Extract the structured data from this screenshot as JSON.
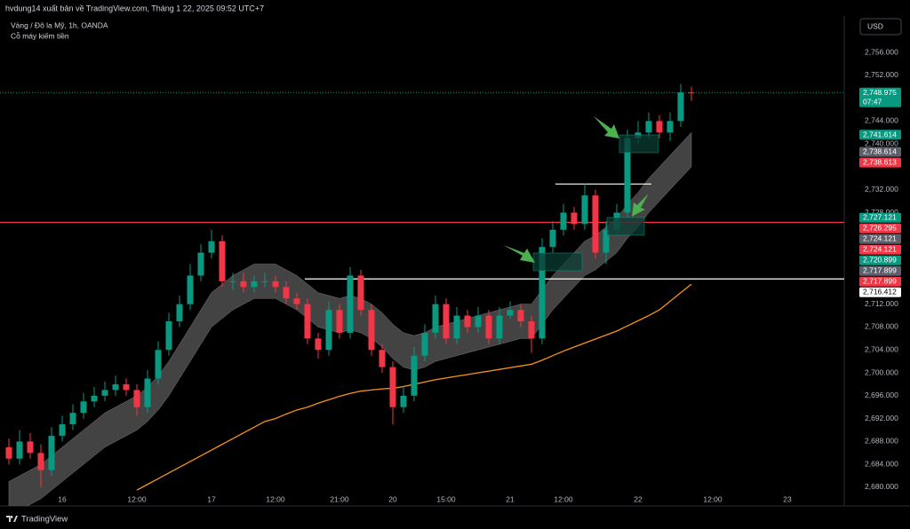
{
  "header": {
    "publisher": "hvdung14 xuất bản về TradingView.com, Tháng 1 22, 2025 09:52 UTC+7",
    "symbol": "Vàng / Đô la Mỹ, 1h, OANDA",
    "indicator": "Cỗ máy kiếm tiền",
    "currency": "USD",
    "brand": "TradingView"
  },
  "chart_data": {
    "type": "candlestick",
    "categories": [
      null,
      null,
      null,
      null,
      null,
      "16",
      null,
      null,
      null,
      null,
      null,
      null,
      "12:00",
      null,
      null,
      null,
      null,
      null,
      null,
      "17",
      null,
      null,
      null,
      null,
      null,
      "12:00",
      null,
      null,
      null,
      null,
      null,
      "21:00",
      null,
      null,
      null,
      null,
      "20",
      null,
      null,
      null,
      null,
      "15:00",
      null,
      null,
      null,
      null,
      null,
      "21",
      null,
      null,
      null,
      null,
      "12:00",
      null,
      null,
      null,
      null,
      null,
      null,
      "22",
      null,
      null,
      null,
      null,
      null,
      null,
      "12:00",
      null,
      null,
      null,
      null,
      null,
      null,
      "23",
      null,
      null,
      null,
      null
    ],
    "open": [
      2687,
      2685,
      2688,
      2686,
      2683,
      2689,
      2691,
      2693,
      2695,
      2696,
      2697,
      2698,
      2697,
      2694,
      2699,
      2704,
      2709,
      2712,
      2717,
      2721,
      2723,
      2716,
      2716,
      2715,
      2716,
      2716,
      2715,
      2713,
      2712,
      2706,
      2704,
      2711,
      2707,
      2717,
      2711,
      2704,
      2701,
      2694,
      2696,
      2703,
      2707,
      2712,
      2706,
      2710,
      2708,
      2710,
      2706,
      2710,
      2711,
      2709,
      2706,
      2722,
      2725,
      2728,
      2726,
      2731,
      2721,
      2725,
      2728,
      2741,
      2742,
      2744,
      2742,
      2744,
      2749,
      null,
      null,
      null,
      null,
      null,
      null,
      null,
      null,
      null,
      null,
      null,
      null,
      null
    ],
    "high": [
      2688.5,
      2690,
      2689.5,
      2687.5,
      2690.5,
      2692.5,
      2694.5,
      2696.5,
      2697.5,
      2698.5,
      2699.5,
      2699,
      2698,
      2700.5,
      2705.5,
      2710.5,
      2713.5,
      2719,
      2722.5,
      2725,
      2724,
      2717.5,
      2717.5,
      2717,
      2717.5,
      2717,
      2716,
      2714,
      2713,
      2707,
      2712.5,
      2712,
      2718.5,
      2718,
      2712,
      2705,
      2702,
      2697.5,
      2704.5,
      2708.5,
      2713.5,
      2713,
      2711.5,
      2711,
      2711.5,
      2711,
      2711.5,
      2712.5,
      2712,
      2710,
      2723.5,
      2726.5,
      2729.5,
      2729,
      2733,
      2732,
      2726.5,
      2729.5,
      2742.5,
      2744,
      2745.5,
      2745,
      2745.5,
      2750.5,
      2750,
      null,
      null,
      null,
      null,
      null,
      null,
      null,
      null,
      null,
      null,
      null,
      null,
      null
    ],
    "low": [
      2684,
      2684,
      2685,
      2680,
      2682,
      2688,
      2690,
      2692,
      2694,
      2695,
      2696,
      2696,
      2692.5,
      2693,
      2698,
      2703,
      2708,
      2711,
      2716,
      2720,
      2715,
      2714.5,
      2714,
      2714,
      2715,
      2714,
      2712,
      2711,
      2705,
      2702.5,
      2703,
      2706,
      2706,
      2710,
      2703,
      2700,
      2691,
      2693,
      2695,
      2702,
      2706,
      2705,
      2705,
      2707,
      2707,
      2705,
      2705,
      2709.5,
      2708,
      2703.5,
      2705,
      2721,
      2724,
      2725,
      2725,
      2720,
      2719,
      2724,
      2727,
      2740,
      2741,
      2741,
      2740.5,
      2743,
      2747.5,
      null,
      null,
      null,
      null,
      null,
      null,
      null,
      null,
      null,
      null,
      null,
      null,
      null
    ],
    "close": [
      2685,
      2688,
      2686,
      2683,
      2689,
      2691,
      2693,
      2695,
      2696,
      2697,
      2698,
      2697,
      2694,
      2699,
      2704,
      2709,
      2712,
      2717,
      2721,
      2723,
      2716,
      2716,
      2715,
      2716,
      2716,
      2715,
      2713,
      2712,
      2706,
      2704,
      2711,
      2707,
      2717,
      2711,
      2704,
      2701,
      2694,
      2696,
      2703,
      2707,
      2712,
      2706,
      2710,
      2708,
      2710,
      2706,
      2710,
      2711,
      2709,
      2706,
      2722,
      2725,
      2728,
      2726,
      2731,
      2721,
      2725,
      2728,
      2741,
      2742,
      2744,
      2742,
      2744,
      2749,
      2748.975,
      null,
      null,
      null,
      null,
      null,
      null,
      null,
      null,
      null,
      null,
      null,
      null,
      null
    ],
    "up_color": "#089981",
    "down_color": "#f23645",
    "band": {
      "color": "#5a5a5a",
      "upper": [
        2681,
        2682,
        2683,
        2684,
        2685.5,
        2687,
        2688.5,
        2690,
        2691.5,
        2693,
        2694,
        2695,
        2696,
        2697.5,
        2699.5,
        2702,
        2705,
        2708,
        2711,
        2714,
        2715.5,
        2717,
        2718,
        2719,
        2719,
        2719,
        2718,
        2717,
        2715.5,
        2714,
        2713.5,
        2713,
        2713.5,
        2713,
        2712,
        2710.5,
        2708.5,
        2707,
        2706.5,
        2707,
        2708,
        2708.5,
        2709,
        2709.5,
        2710,
        2710.5,
        2711,
        2711.5,
        2712,
        2712,
        2714.5,
        2717,
        2719,
        2721,
        2723,
        2724,
        2725.5,
        2727,
        2729.5,
        2731.5,
        2734,
        2736,
        2738,
        2740,
        2742,
        null,
        null,
        null,
        null,
        null,
        null,
        null,
        null,
        null,
        null,
        null,
        null,
        null
      ],
      "lower": [
        2675,
        2676,
        2677,
        2678,
        2679.5,
        2681,
        2682.5,
        2684,
        2685.5,
        2687,
        2688,
        2689,
        2690,
        2691.5,
        2693.5,
        2696,
        2699,
        2702,
        2705,
        2708,
        2709.5,
        2711,
        2712,
        2713,
        2713,
        2713,
        2712,
        2711,
        2709.5,
        2708,
        2707.5,
        2707,
        2707.5,
        2707,
        2706,
        2704.5,
        2702.5,
        2701,
        2700.5,
        2701,
        2702,
        2702.5,
        2703,
        2703.5,
        2704,
        2704.5,
        2705,
        2705.5,
        2706,
        2706,
        2708.5,
        2711,
        2713,
        2715,
        2717,
        2718,
        2719.5,
        2721,
        2723.5,
        2725.5,
        2728,
        2730,
        2732,
        2734,
        2736,
        null,
        null,
        null,
        null,
        null,
        null,
        null,
        null,
        null,
        null,
        null,
        null,
        null
      ]
    },
    "ma": {
      "color": "#f7931a",
      "values": [
        null,
        null,
        null,
        null,
        null,
        null,
        null,
        null,
        null,
        null,
        null,
        null,
        2679.5,
        2680.5,
        2681.5,
        2682.5,
        2683.5,
        2684.5,
        2685.5,
        2686.5,
        2687.5,
        2688.5,
        2689.5,
        2690.5,
        2691.5,
        2692,
        2692.8,
        2693.5,
        2694,
        2694.7,
        2695.3,
        2695.9,
        2696.4,
        2696.8,
        2697,
        2697.2,
        2697.3,
        2697.6,
        2698,
        2698.4,
        2698.8,
        2699.1,
        2699.4,
        2699.7,
        2700,
        2700.3,
        2700.6,
        2700.9,
        2701.2,
        2701.5,
        2702.2,
        2703,
        2703.8,
        2704.5,
        2705.2,
        2705.9,
        2706.6,
        2707.3,
        2708.2,
        2709.1,
        2710,
        2711,
        2712.5,
        2714,
        2715.5,
        null,
        null,
        null,
        null,
        null,
        null,
        null,
        null,
        null,
        null,
        null,
        null,
        null
      ]
    },
    "hlines": [
      {
        "value": 2726.295,
        "color": "#f23645"
      },
      {
        "value": 2716.412,
        "color": "#ffffff"
      },
      {
        "value": 2733,
        "color": "#ffffff"
      }
    ],
    "ylim": [
      2676.74,
      2762.05
    ],
    "yticks": [
      {
        "value": 2756,
        "label": "2,756.000"
      },
      {
        "value": 2752,
        "label": "2,752.000"
      },
      {
        "value": 2744,
        "label": "2,744.000"
      },
      {
        "value": 2740,
        "label": "2,740.000"
      },
      {
        "value": 2732,
        "label": "2,732.000"
      },
      {
        "value": 2728,
        "label": "2,728.000"
      },
      {
        "value": 2712,
        "label": "2,712.000"
      },
      {
        "value": 2708,
        "label": "2,708.000"
      },
      {
        "value": 2704,
        "label": "2,704.000"
      },
      {
        "value": 2700,
        "label": "2,700.000"
      },
      {
        "value": 2696,
        "label": "2,696.000"
      },
      {
        "value": 2692,
        "label": "2,692.000"
      },
      {
        "value": 2688,
        "label": "2,688.000"
      },
      {
        "value": 2684,
        "label": "2,684.000"
      },
      {
        "value": 2680,
        "label": "2,680.000"
      }
    ],
    "grid": false,
    "countdown": "07:47",
    "price_labels": [
      {
        "value": 2748.975,
        "label": "2,748.975",
        "color": "#089981"
      },
      {
        "value": 2741.614,
        "label": "2,741.614",
        "color": "#089981"
      },
      {
        "value": 2738.614,
        "label": "2,738.614",
        "color": "#5d606b"
      },
      {
        "value": 2738.613,
        "label": "2,738.613",
        "color": "#f23645"
      },
      {
        "value": 2727.121,
        "label": "2,727.121",
        "color": "#089981"
      },
      {
        "value": 2726.295,
        "label": "2,726.295",
        "color": "#f23645"
      },
      {
        "value": 2724.121,
        "label": "2,724.121",
        "color": "#5d606b"
      },
      {
        "value": 2724.121,
        "label": "2,724.121",
        "color": "#f23645"
      },
      {
        "value": 2720.899,
        "label": "2,720.899",
        "color": "#089981"
      },
      {
        "value": 2717.899,
        "label": "2,717.899",
        "color": "#5d606b"
      },
      {
        "value": 2717.899,
        "label": "2,717.899",
        "color": "#f23645"
      },
      {
        "value": 2716.412,
        "label": "2,716.412",
        "color": "#ffffff"
      }
    ]
  }
}
